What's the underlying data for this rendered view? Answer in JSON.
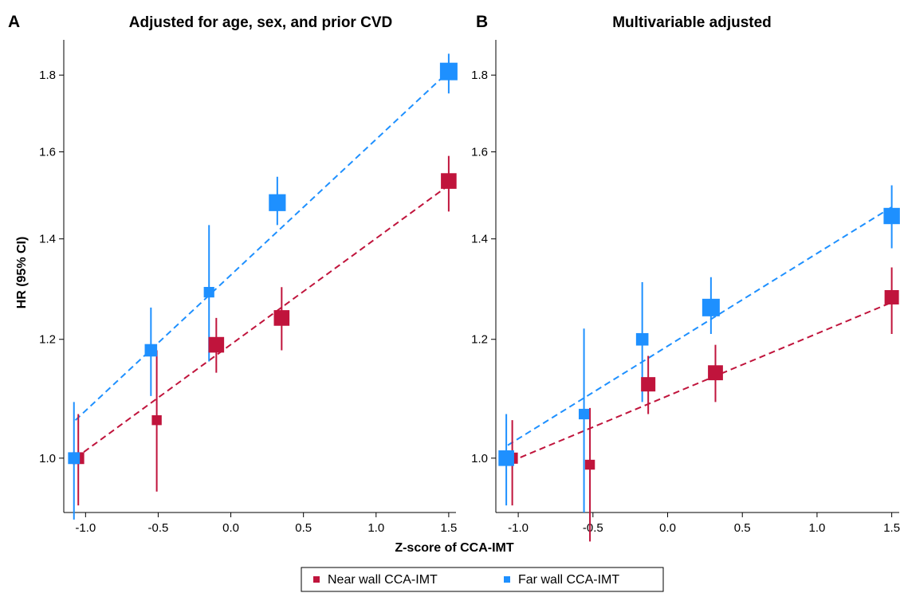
{
  "figure": {
    "ylabel": "HR (95% CI)",
    "xlabel": "Z-score of CCA-IMT",
    "legend": [
      {
        "label": "Near wall CCA-IMT",
        "color": "#c0143c"
      },
      {
        "label": "Far wall CCA-IMT",
        "color": "#1e90ff"
      }
    ]
  },
  "chart_data": [
    {
      "panel": "A",
      "title": "Adjusted for age, sex, and prior CVD",
      "type": "scatter",
      "y_scale": "log",
      "xlim": [
        -1.15,
        1.55
      ],
      "ylim": [
        0.92,
        1.9
      ],
      "xticks": [
        -1.0,
        -0.5,
        0.0,
        0.5,
        1.0,
        1.5
      ],
      "xtick_labels": [
        "-1.0",
        "-0.5",
        "0.0",
        "0.5",
        "1.0",
        "1.5"
      ],
      "yticks": [
        1.0,
        1.2,
        1.4,
        1.6,
        1.8
      ],
      "ytick_labels": [
        "1.0",
        "1.2",
        "1.4",
        "1.6",
        "1.8"
      ],
      "series": [
        {
          "name": "Near wall CCA-IMT",
          "color": "#c0143c",
          "points": [
            {
              "x": -1.05,
              "hr": 1.0,
              "lo": 0.93,
              "hi": 1.07,
              "weight": 0.55
            },
            {
              "x": -0.51,
              "hr": 1.06,
              "lo": 0.95,
              "hi": 1.18,
              "weight": 0.4
            },
            {
              "x": -0.1,
              "hr": 1.19,
              "lo": 1.14,
              "hi": 1.24,
              "weight": 0.85
            },
            {
              "x": 0.35,
              "hr": 1.24,
              "lo": 1.18,
              "hi": 1.3,
              "weight": 0.85
            },
            {
              "x": 1.5,
              "hr": 1.53,
              "lo": 1.46,
              "hi": 1.59,
              "weight": 0.85
            }
          ],
          "fit": {
            "x": [
              -1.07,
              1.5
            ],
            "hr": [
              1.0,
              1.52
            ]
          }
        },
        {
          "name": "Far wall CCA-IMT",
          "color": "#1e90ff",
          "points": [
            {
              "x": -1.08,
              "hr": 1.0,
              "lo": 0.91,
              "hi": 1.09,
              "weight": 0.55
            },
            {
              "x": -0.55,
              "hr": 1.18,
              "lo": 1.1,
              "hi": 1.26,
              "weight": 0.6
            },
            {
              "x": -0.15,
              "hr": 1.29,
              "lo": 1.16,
              "hi": 1.43,
              "weight": 0.45
            },
            {
              "x": 0.32,
              "hr": 1.48,
              "lo": 1.43,
              "hi": 1.54,
              "weight": 0.95
            },
            {
              "x": 1.5,
              "hr": 1.81,
              "lo": 1.75,
              "hi": 1.86,
              "weight": 1.0
            }
          ],
          "fit": {
            "x": [
              -1.07,
              1.5
            ],
            "hr": [
              1.06,
              1.81
            ]
          }
        }
      ]
    },
    {
      "panel": "B",
      "title": "Multivariable adjusted",
      "type": "scatter",
      "y_scale": "log",
      "xlim": [
        -1.15,
        1.55
      ],
      "ylim": [
        0.92,
        1.9
      ],
      "xticks": [
        -1.0,
        -0.5,
        0.0,
        0.5,
        1.0,
        1.5
      ],
      "xtick_labels": [
        "-1.0",
        "-0.5",
        "0.0",
        "0.5",
        "1.0",
        "1.5"
      ],
      "yticks": [
        1.0,
        1.2,
        1.4,
        1.6,
        1.8
      ],
      "ytick_labels": [
        "1.0",
        "1.2",
        "1.4",
        "1.6",
        "1.8"
      ],
      "series": [
        {
          "name": "Near wall CCA-IMT",
          "color": "#c0143c",
          "points": [
            {
              "x": -1.04,
              "hr": 1.0,
              "lo": 0.93,
              "hi": 1.06,
              "weight": 0.5
            },
            {
              "x": -0.52,
              "hr": 0.99,
              "lo": 0.88,
              "hi": 1.08,
              "weight": 0.4
            },
            {
              "x": -0.13,
              "hr": 1.12,
              "lo": 1.07,
              "hi": 1.17,
              "weight": 0.75
            },
            {
              "x": 0.32,
              "hr": 1.14,
              "lo": 1.09,
              "hi": 1.19,
              "weight": 0.8
            },
            {
              "x": 1.5,
              "hr": 1.28,
              "lo": 1.21,
              "hi": 1.34,
              "weight": 0.75
            }
          ],
          "fit": {
            "x": [
              -1.05,
              1.5
            ],
            "hr": [
              0.995,
              1.27
            ]
          }
        },
        {
          "name": "Far wall CCA-IMT",
          "color": "#1e90ff",
          "points": [
            {
              "x": -1.08,
              "hr": 1.0,
              "lo": 0.93,
              "hi": 1.07,
              "weight": 0.85
            },
            {
              "x": -0.56,
              "hr": 1.07,
              "lo": 0.92,
              "hi": 1.22,
              "weight": 0.45
            },
            {
              "x": -0.17,
              "hr": 1.2,
              "lo": 1.09,
              "hi": 1.31,
              "weight": 0.6
            },
            {
              "x": 0.29,
              "hr": 1.26,
              "lo": 1.21,
              "hi": 1.32,
              "weight": 1.0
            },
            {
              "x": 1.5,
              "hr": 1.45,
              "lo": 1.38,
              "hi": 1.52,
              "weight": 0.9
            }
          ],
          "fit": {
            "x": [
              -1.07,
              1.5
            ],
            "hr": [
              1.02,
              1.47
            ]
          }
        }
      ]
    }
  ]
}
